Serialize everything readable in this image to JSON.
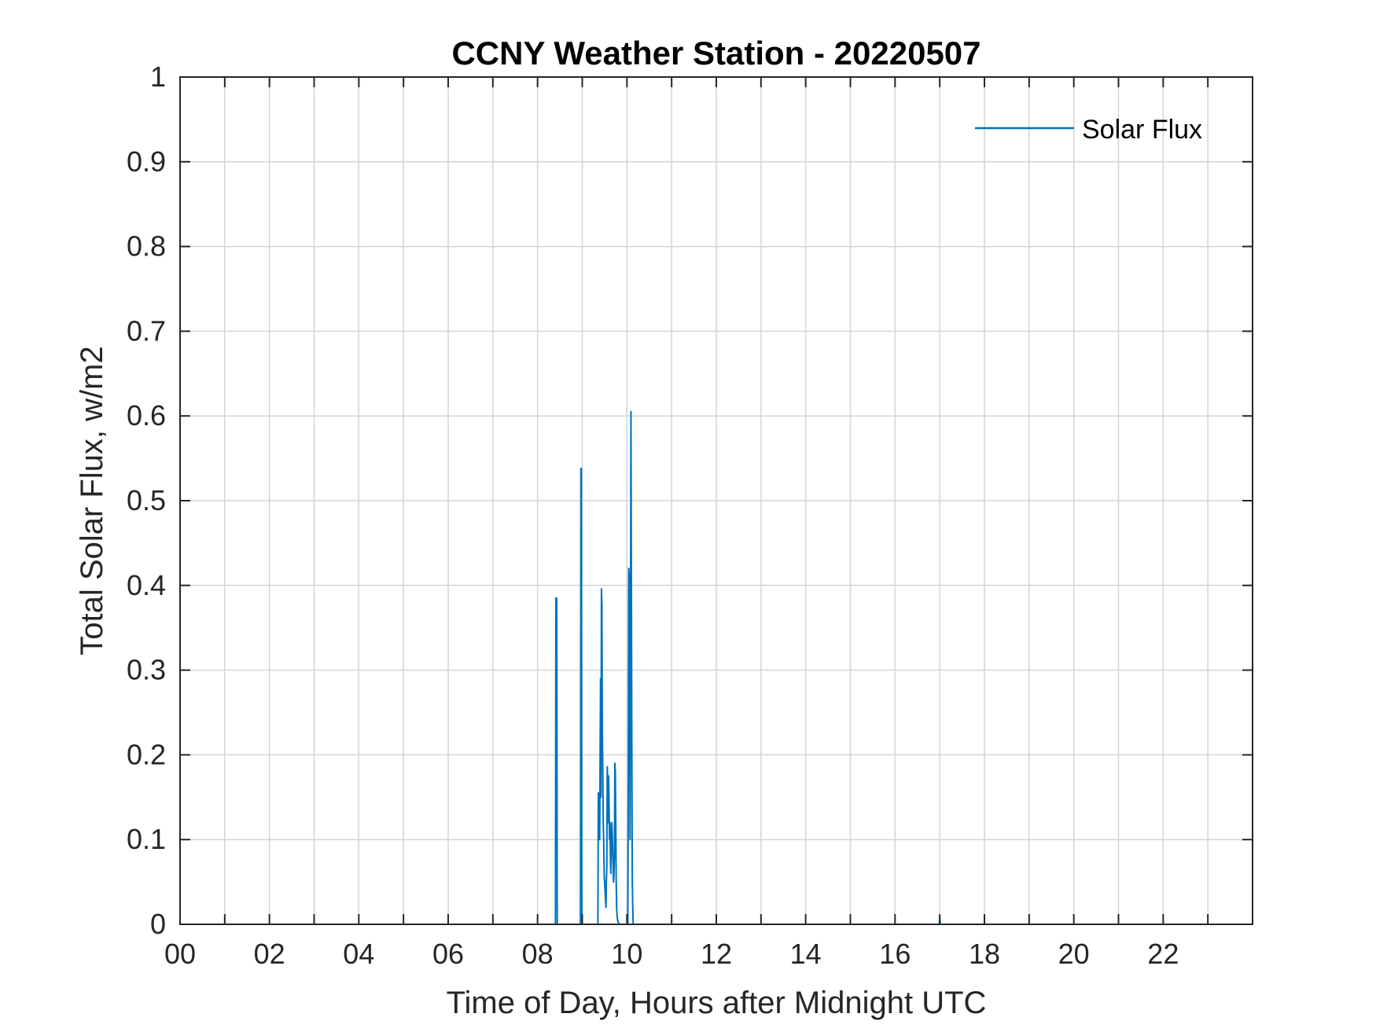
{
  "chart_data": {
    "type": "line",
    "title": "CCNY Weather Station - 20220507",
    "xlabel": "Time of Day, Hours after Midnight UTC",
    "ylabel": "Total Solar Flux, w/m2",
    "xlim": [
      0,
      24
    ],
    "ylim": [
      0,
      1
    ],
    "grid": true,
    "legend_position": "top-right",
    "x_ticks": [
      0,
      2,
      4,
      6,
      8,
      10,
      12,
      14,
      16,
      18,
      20,
      22
    ],
    "x_tick_labels": [
      "00",
      "02",
      "04",
      "06",
      "08",
      "10",
      "12",
      "14",
      "16",
      "18",
      "20",
      "22"
    ],
    "x_minor_ticks": [
      1,
      3,
      5,
      7,
      9,
      11,
      13,
      15,
      17,
      19,
      21,
      23
    ],
    "y_ticks": [
      0,
      0.1,
      0.2,
      0.3,
      0.4,
      0.5,
      0.6,
      0.7,
      0.8,
      0.9,
      1
    ],
    "y_tick_labels": [
      "0",
      "0.1",
      "0.2",
      "0.3",
      "0.4",
      "0.5",
      "0.6",
      "0.7",
      "0.8",
      "0.9",
      "1"
    ],
    "series": [
      {
        "name": "Solar Flux",
        "color": "#0072BD",
        "x": [
          0,
          8.4,
          8.41,
          8.43,
          8.44,
          8.96,
          8.97,
          8.98,
          8.99,
          9.35,
          9.36,
          9.37,
          9.38,
          9.39,
          9.4,
          9.41,
          9.42,
          9.43,
          9.44,
          9.45,
          9.46,
          9.47,
          9.48,
          9.49,
          9.5,
          9.51,
          9.52,
          9.53,
          9.54,
          9.55,
          9.56,
          9.57,
          9.58,
          9.59,
          9.6,
          9.61,
          9.62,
          9.63,
          9.64,
          9.65,
          9.66,
          9.67,
          9.68,
          9.69,
          9.7,
          9.71,
          9.72,
          9.73,
          9.74,
          9.75,
          9.76,
          9.77,
          9.78,
          9.79,
          9.8,
          9.81,
          9.82,
          10.02,
          10.03,
          10.04,
          10.05,
          10.06,
          10.07,
          10.08,
          10.09,
          10.1,
          10.11,
          10.12,
          10.13,
          10.14,
          16.99,
          17.0,
          17.01,
          24
        ],
        "values": [
          0,
          0,
          0.385,
          0.385,
          0,
          0,
          0.538,
          0.538,
          0,
          0,
          0.155,
          0.12,
          0.14,
          0.1,
          0.2,
          0.29,
          0.15,
          0.396,
          0.375,
          0.225,
          0.18,
          0.12,
          0.1,
          0.06,
          0.05,
          0.04,
          0.03,
          0.02,
          0.05,
          0.07,
          0.186,
          0.16,
          0.12,
          0.175,
          0.14,
          0.1,
          0.12,
          0.08,
          0.06,
          0.1,
          0.12,
          0.11,
          0.09,
          0.07,
          0.05,
          0.06,
          0.08,
          0.19,
          0.18,
          0.12,
          0.05,
          0.02,
          0.01,
          0.005,
          0.003,
          0.002,
          0,
          0,
          0.15,
          0.42,
          0.41,
          0.38,
          0.1,
          0.335,
          0.605,
          0.4,
          0.2,
          0.05,
          0.02,
          0,
          0,
          0.008,
          0,
          0
        ]
      }
    ]
  }
}
